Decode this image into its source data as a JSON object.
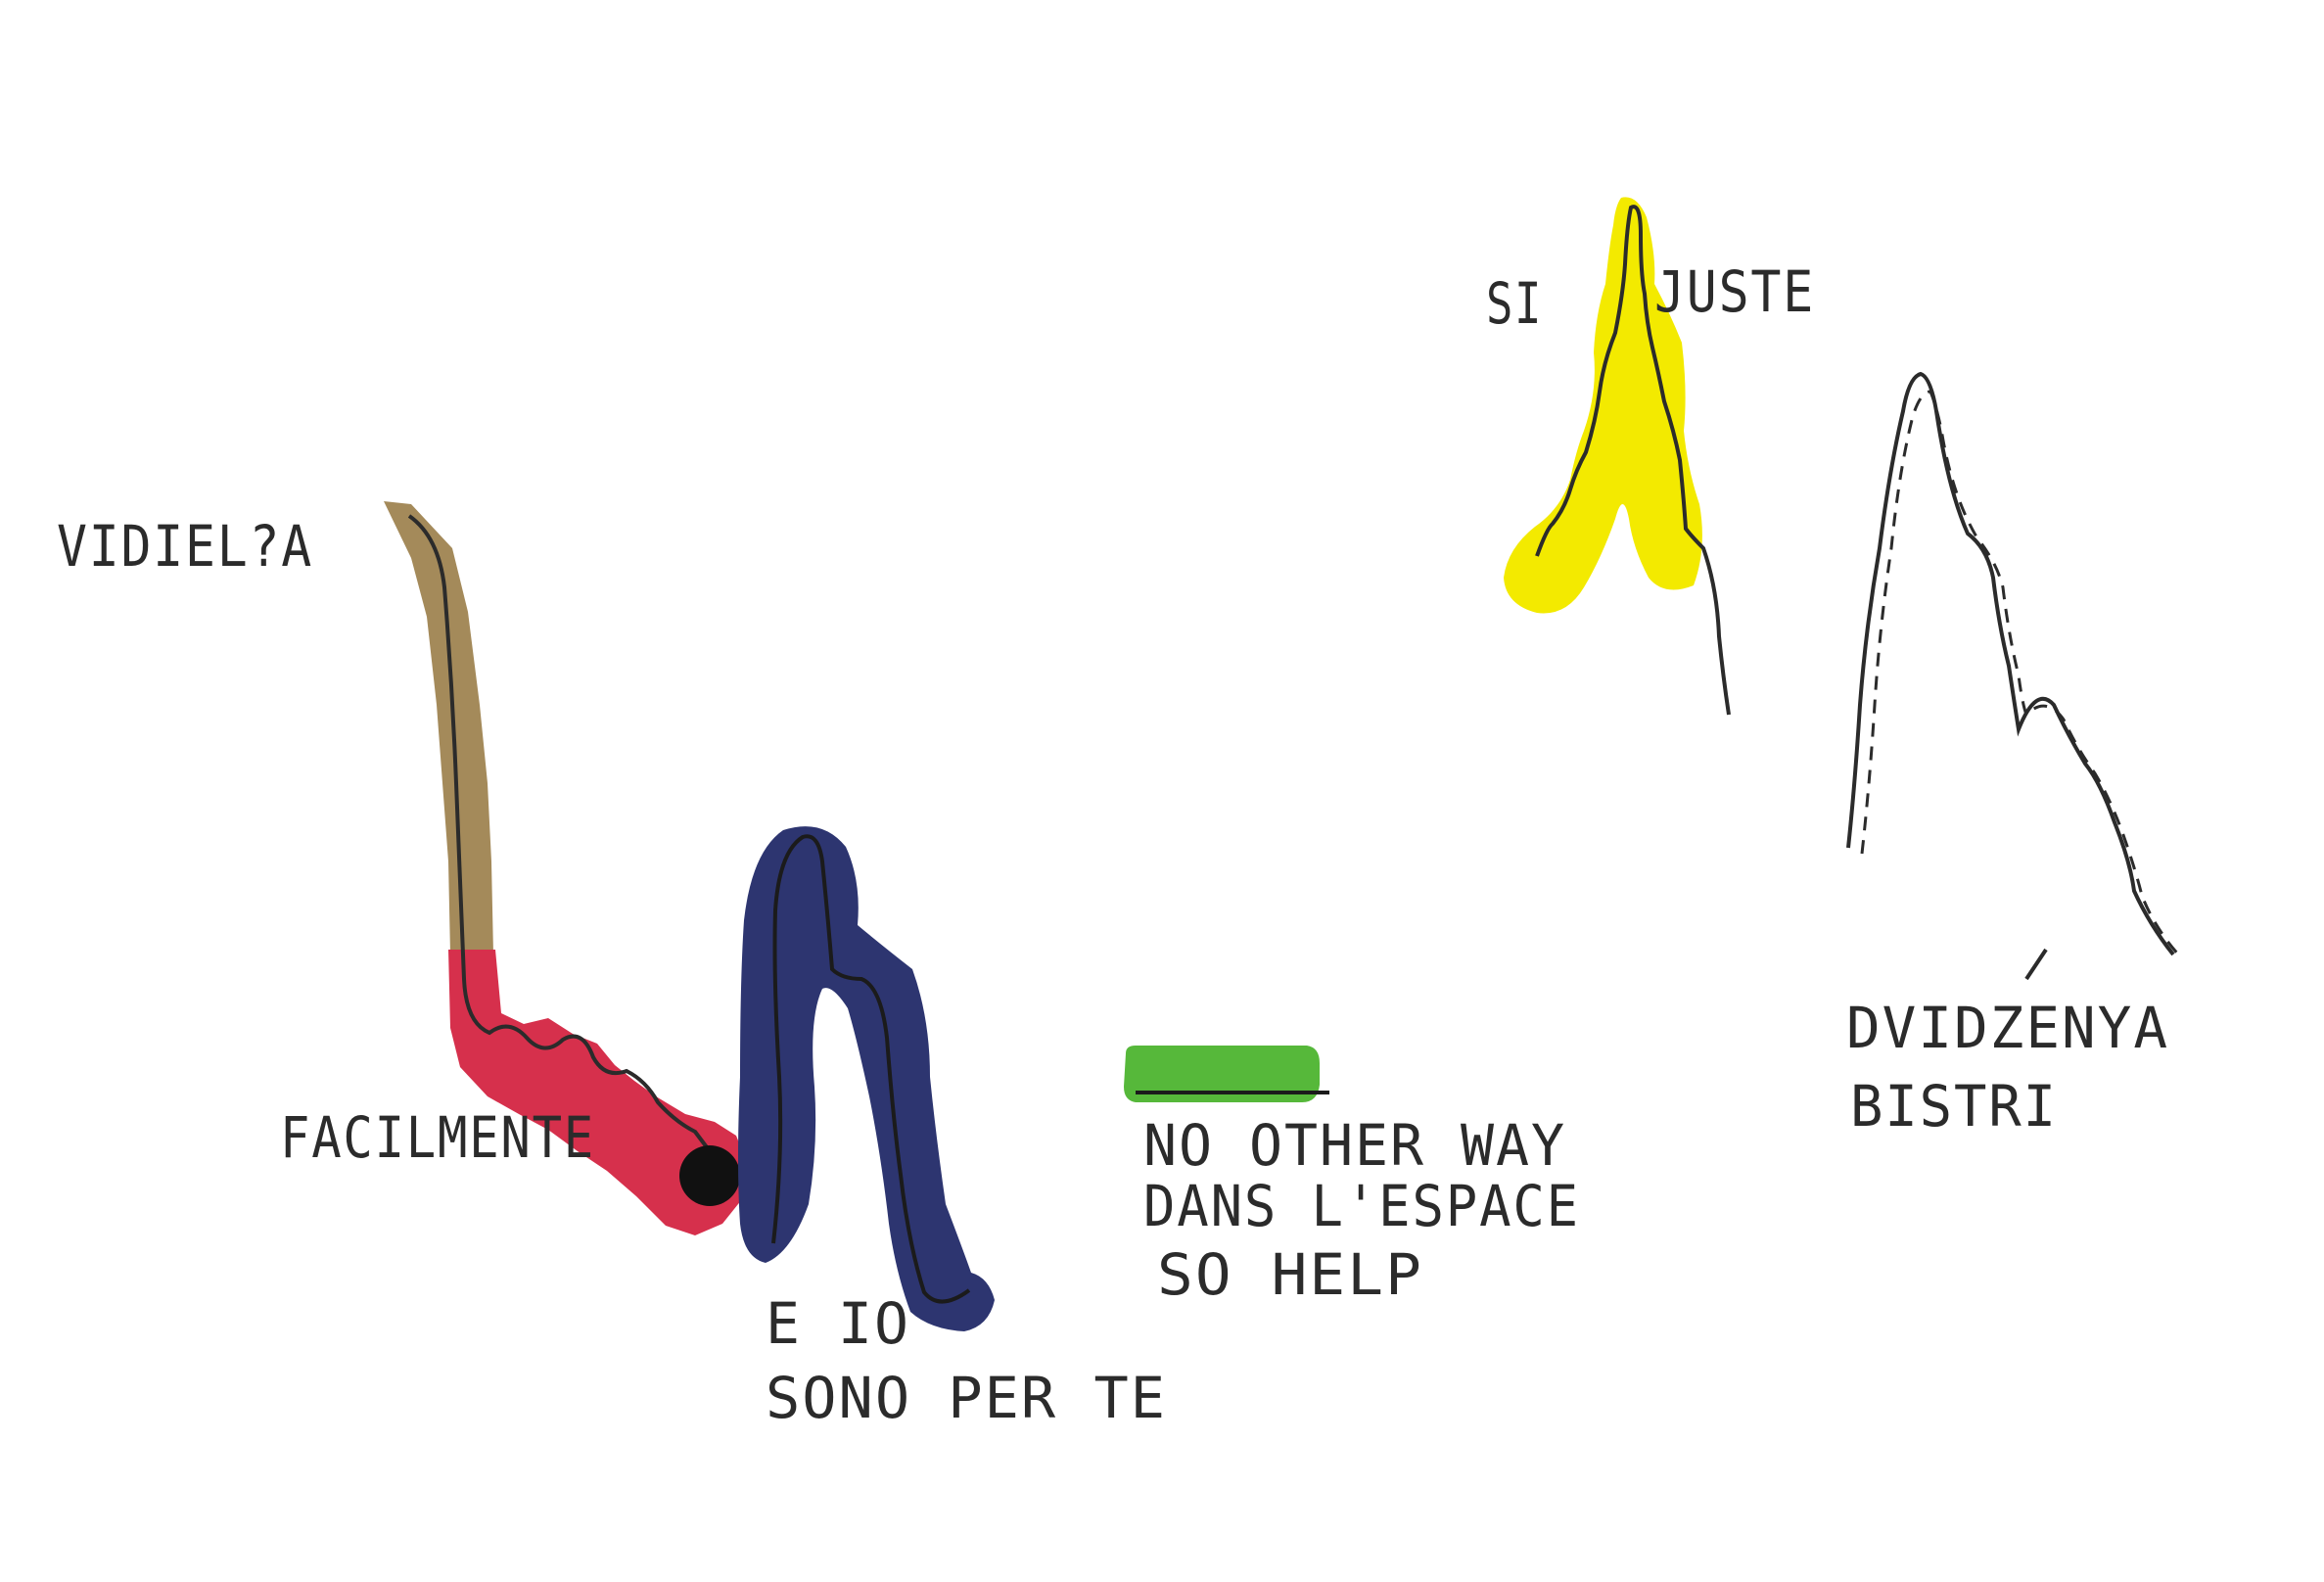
{
  "labels": {
    "vidiela": "VIDIEL?A",
    "facilmente": "FACILMENTE",
    "e_io": "E IO",
    "sono_per_te": "SONO PER TE",
    "no_other_way": "NO OTHER WAY",
    "dans_lespace": "DANS L'ESPACE",
    "so_help": "SO HELP",
    "si": "SI",
    "juste": "JUSTE",
    "dvidzenya": "DVIDZENYA",
    "bistri": "BISTRI"
  },
  "colors": {
    "background": "#ffffff",
    "ink": "#2b2b2b",
    "brown": "#a48a5a",
    "red": "#d6304c",
    "navy": "#2d3570",
    "green": "#56b83a",
    "yellow": "#f3ea00"
  }
}
